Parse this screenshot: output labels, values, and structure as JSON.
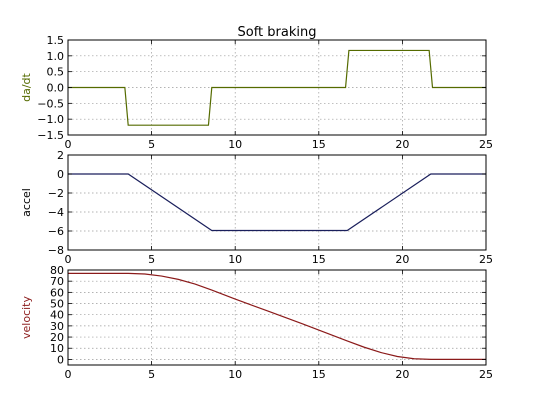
{
  "figure": {
    "title": "Soft braking"
  },
  "chart_data": [
    {
      "type": "line",
      "title": "Soft braking",
      "ylabel": "da/dt",
      "xlabel": "",
      "xlim": [
        0,
        25
      ],
      "ylim": [
        -1.5,
        1.5
      ],
      "xticks": [
        0,
        5,
        10,
        15,
        20,
        25
      ],
      "xtick_labels": [
        "0",
        "5",
        "10",
        "15",
        "20",
        "25"
      ],
      "yticks": [
        -1.5,
        -1.0,
        -0.5,
        0.0,
        0.5,
        1.0,
        1.5
      ],
      "ytick_labels": [
        "−1.5",
        "−1.0",
        "−0.5",
        "0.0",
        "0.5",
        "1.0",
        "1.5"
      ],
      "grid": true,
      "color": "#556b00",
      "label_color": "#556b00",
      "series": [
        {
          "x": [
            0,
            3.4,
            3.6,
            8.4,
            8.6,
            16.6,
            16.8,
            21.6,
            21.8,
            25
          ],
          "y": [
            0,
            0,
            -1.19,
            -1.19,
            0,
            0,
            1.17,
            1.17,
            0,
            0
          ]
        }
      ]
    },
    {
      "type": "line",
      "title": "",
      "ylabel": "accel",
      "xlabel": "",
      "xlim": [
        0,
        25
      ],
      "ylim": [
        -8,
        2
      ],
      "xticks": [
        0,
        5,
        10,
        15,
        20,
        25
      ],
      "xtick_labels": [
        "0",
        "5",
        "10",
        "15",
        "20",
        "25"
      ],
      "yticks": [
        -8,
        -6,
        -4,
        -2,
        0,
        2
      ],
      "ytick_labels": [
        "−8",
        "−6",
        "−4",
        "−2",
        "0",
        "2"
      ],
      "grid": true,
      "color": "#1a1f5c",
      "label_color": "#000000",
      "series": [
        {
          "x": [
            0,
            3.6,
            8.6,
            16.7,
            21.7,
            25
          ],
          "y": [
            0,
            0,
            -5.95,
            -5.95,
            0,
            0
          ]
        }
      ]
    },
    {
      "type": "line",
      "title": "",
      "ylabel": "velocity",
      "xlabel": "",
      "xlim": [
        0,
        25
      ],
      "ylim": [
        -5,
        80
      ],
      "xticks": [
        0,
        5,
        10,
        15,
        20,
        25
      ],
      "xtick_labels": [
        "0",
        "5",
        "10",
        "15",
        "20",
        "25"
      ],
      "yticks": [
        0,
        10,
        20,
        30,
        40,
        50,
        60,
        70,
        80
      ],
      "ytick_labels": [
        "0",
        "10",
        "20",
        "30",
        "40",
        "50",
        "60",
        "70",
        "80"
      ],
      "grid": true,
      "color": "#8b1a1a",
      "label_color": "#8b1a1a",
      "series": [
        {
          "x": [
            0,
            3.6,
            4.6,
            5.6,
            6.6,
            7.6,
            8.6,
            10,
            12,
            14,
            16.7,
            17.7,
            18.7,
            19.7,
            20.7,
            21.7,
            25
          ],
          "y": [
            77,
            77,
            76.4,
            74.6,
            71.6,
            67.4,
            62,
            54,
            43,
            32,
            16.5,
            11,
            6.2,
            2.6,
            0.6,
            0,
            0
          ]
        }
      ]
    }
  ]
}
